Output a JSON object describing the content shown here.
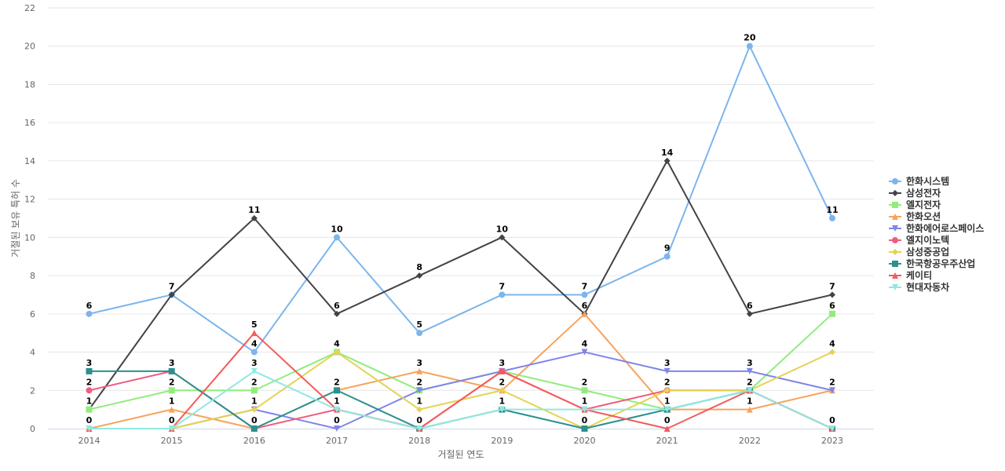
{
  "chart_data": {
    "type": "line",
    "title": "",
    "xlabel": "거절된 연도",
    "ylabel": "거절된 보유 특허 수",
    "x": [
      2014,
      2015,
      2016,
      2017,
      2018,
      2019,
      2020,
      2021,
      2022,
      2023
    ],
    "y_ticks": [
      0,
      2,
      4,
      6,
      8,
      10,
      12,
      14,
      16,
      18,
      20,
      22
    ],
    "ylim": [
      0,
      22
    ],
    "grid": true,
    "legend_position": "right",
    "series": [
      {
        "name": "한화시스템",
        "color": "#7cb5ec",
        "marker": "circle",
        "values": [
          6,
          7,
          4,
          10,
          5,
          7,
          7,
          9,
          20,
          11
        ],
        "labeled": true
      },
      {
        "name": "삼성전자",
        "color": "#434348",
        "marker": "diamond",
        "values": [
          1,
          7,
          11,
          6,
          8,
          10,
          6,
          14,
          6,
          7
        ],
        "labeled": true
      },
      {
        "name": "엘지전자",
        "color": "#90ed7d",
        "marker": "square",
        "values": [
          1,
          2,
          2,
          4,
          2,
          3,
          2,
          1,
          2,
          6
        ],
        "labeled": true
      },
      {
        "name": "한화오션",
        "color": "#f7a35c",
        "marker": "triangle",
        "values": [
          0,
          1,
          0,
          2,
          3,
          2,
          6,
          1,
          1,
          2
        ],
        "labeled": true
      },
      {
        "name": "한화에어로스페이스",
        "color": "#8085e9",
        "marker": "triangle-down",
        "values": [
          0,
          0,
          1,
          0,
          2,
          3,
          4,
          3,
          3,
          2
        ],
        "labeled": true
      },
      {
        "name": "엘지이노텍",
        "color": "#f15c80",
        "marker": "circle",
        "values": [
          2,
          3,
          0,
          1,
          0,
          3,
          1,
          2,
          2,
          0
        ],
        "labeled": false
      },
      {
        "name": "삼성중공업",
        "color": "#e4d354",
        "marker": "diamond",
        "values": [
          0,
          0,
          1,
          4,
          1,
          2,
          0,
          2,
          2,
          4
        ],
        "labeled": true
      },
      {
        "name": "한국항공우주산업",
        "color": "#2b908f",
        "marker": "square",
        "values": [
          3,
          3,
          0,
          2,
          0,
          1,
          0,
          1,
          2,
          0
        ],
        "labeled": false
      },
      {
        "name": "케이티",
        "color": "#f45b5b",
        "marker": "triangle",
        "values": [
          0,
          0,
          5,
          1,
          0,
          3,
          1,
          0,
          2,
          0
        ],
        "labeled": false
      },
      {
        "name": "현대자동차",
        "color": "#91e8e1",
        "marker": "triangle-down",
        "values": [
          0,
          0,
          3,
          1,
          0,
          1,
          1,
          1,
          2,
          0
        ],
        "labeled": false
      }
    ],
    "data_labels": [
      {
        "x": 2014,
        "value": 6
      },
      {
        "x": 2014,
        "value": 3
      },
      {
        "x": 2014,
        "value": 2
      },
      {
        "x": 2014,
        "value": 1
      },
      {
        "x": 2014,
        "value": 0
      },
      {
        "x": 2015,
        "value": 7
      },
      {
        "x": 2015,
        "value": 3
      },
      {
        "x": 2015,
        "value": 2
      },
      {
        "x": 2015,
        "value": 1
      },
      {
        "x": 2015,
        "value": 0
      },
      {
        "x": 2016,
        "value": 11
      },
      {
        "x": 2016,
        "value": 5
      },
      {
        "x": 2016,
        "value": 4
      },
      {
        "x": 2016,
        "value": 3
      },
      {
        "x": 2016,
        "value": 2
      },
      {
        "x": 2016,
        "value": 1
      },
      {
        "x": 2016,
        "value": 0
      },
      {
        "x": 2017,
        "value": 10
      },
      {
        "x": 2017,
        "value": 6
      },
      {
        "x": 2017,
        "value": 4
      },
      {
        "x": 2017,
        "value": 2
      },
      {
        "x": 2017,
        "value": 1
      },
      {
        "x": 2017,
        "value": 0
      },
      {
        "x": 2018,
        "value": 8
      },
      {
        "x": 2018,
        "value": 5
      },
      {
        "x": 2018,
        "value": 3
      },
      {
        "x": 2018,
        "value": 2
      },
      {
        "x": 2018,
        "value": 1
      },
      {
        "x": 2018,
        "value": 0
      },
      {
        "x": 2019,
        "value": 10
      },
      {
        "x": 2019,
        "value": 7
      },
      {
        "x": 2019,
        "value": 3
      },
      {
        "x": 2019,
        "value": 2
      },
      {
        "x": 2019,
        "value": 1
      },
      {
        "x": 2020,
        "value": 7
      },
      {
        "x": 2020,
        "value": 6
      },
      {
        "x": 2020,
        "value": 4
      },
      {
        "x": 2020,
        "value": 2
      },
      {
        "x": 2020,
        "value": 1
      },
      {
        "x": 2020,
        "value": 0
      },
      {
        "x": 2021,
        "value": 14
      },
      {
        "x": 2021,
        "value": 9
      },
      {
        "x": 2021,
        "value": 3
      },
      {
        "x": 2021,
        "value": 2
      },
      {
        "x": 2021,
        "value": 1
      },
      {
        "x": 2021,
        "value": 0
      },
      {
        "x": 2022,
        "value": 20
      },
      {
        "x": 2022,
        "value": 6
      },
      {
        "x": 2022,
        "value": 3
      },
      {
        "x": 2022,
        "value": 2
      },
      {
        "x": 2022,
        "value": 1
      },
      {
        "x": 2023,
        "value": 11
      },
      {
        "x": 2023,
        "value": 7
      },
      {
        "x": 2023,
        "value": 6
      },
      {
        "x": 2023,
        "value": 4
      },
      {
        "x": 2023,
        "value": 2
      },
      {
        "x": 2023,
        "value": 0
      }
    ]
  }
}
